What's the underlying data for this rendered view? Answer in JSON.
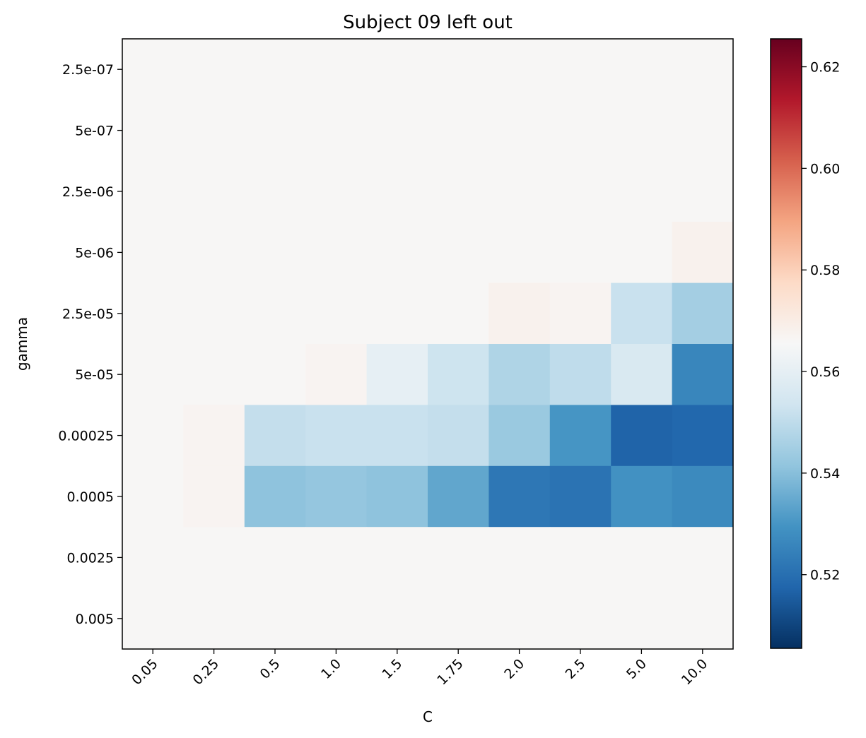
{
  "chart_data": {
    "type": "heatmap",
    "title": "Subject 09 left out",
    "xlabel": "C",
    "ylabel": "gamma",
    "x_categories": [
      "0.05",
      "0.25",
      "0.5",
      "1.0",
      "1.5",
      "1.75",
      "2.0",
      "2.5",
      "5.0",
      "10.0"
    ],
    "y_categories": [
      "2.5e-07",
      "5e-07",
      "2.5e-06",
      "5e-06",
      "2.5e-05",
      "5e-05",
      "0.00025",
      "0.0005",
      "0.0025",
      "0.005"
    ],
    "values": [
      [
        0.5659,
        0.5659,
        0.5659,
        0.5659,
        0.5659,
        0.5659,
        0.5659,
        0.5659,
        0.5659,
        0.5659
      ],
      [
        0.5659,
        0.5659,
        0.5659,
        0.5659,
        0.5659,
        0.5659,
        0.5659,
        0.5659,
        0.5659,
        0.5659
      ],
      [
        0.5659,
        0.5659,
        0.5659,
        0.5659,
        0.5659,
        0.5659,
        0.5659,
        0.5659,
        0.5659,
        0.5659
      ],
      [
        0.5659,
        0.5659,
        0.5659,
        0.5659,
        0.5659,
        0.5659,
        0.5659,
        0.5659,
        0.5659,
        0.568
      ],
      [
        0.5659,
        0.5659,
        0.5659,
        0.5659,
        0.5659,
        0.5659,
        0.568,
        0.567,
        0.552,
        0.545
      ],
      [
        0.5659,
        0.5659,
        0.5659,
        0.567,
        0.56,
        0.553,
        0.547,
        0.55,
        0.556,
        0.526
      ],
      [
        0.5659,
        0.567,
        0.551,
        0.552,
        0.552,
        0.551,
        0.543,
        0.53,
        0.517,
        0.518
      ],
      [
        0.5659,
        0.567,
        0.541,
        0.542,
        0.541,
        0.534,
        0.522,
        0.521,
        0.529,
        0.527
      ],
      [
        0.5659,
        0.5659,
        0.5659,
        0.5659,
        0.5659,
        0.5659,
        0.5659,
        0.5659,
        0.5659,
        0.5659
      ],
      [
        0.5659,
        0.5659,
        0.5659,
        0.5659,
        0.5659,
        0.5659,
        0.5659,
        0.5659,
        0.5659,
        0.5659
      ]
    ],
    "colormap": "RdBu_r",
    "colorbar": {
      "range": [
        0.5055,
        0.6255
      ],
      "ticks": [
        "0.52",
        "0.54",
        "0.56",
        "0.58",
        "0.60",
        "0.62"
      ]
    },
    "grid": false
  }
}
